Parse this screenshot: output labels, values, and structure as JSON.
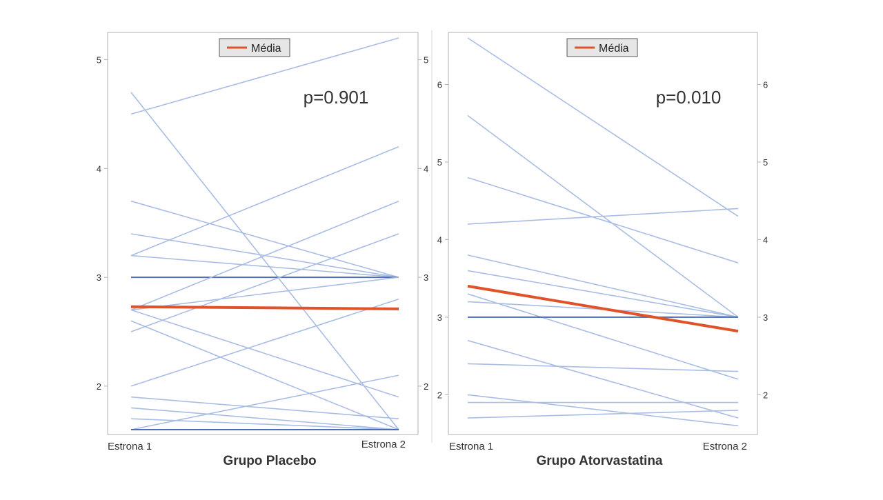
{
  "colors": {
    "individual": "#a9bde4",
    "duplicate": "#4a6db8",
    "mean": "#e0532a",
    "axis": "#b0b0b0",
    "tick_text": "#333333",
    "legend_bg": "#e6e6e6",
    "legend_border": "#555555"
  },
  "chart_data": [
    {
      "type": "line",
      "title": "Grupo Placebo",
      "categories": [
        "Estrona 1",
        "Estrona 2"
      ],
      "ylim": [
        1.6,
        5.2
      ],
      "yticks": [
        "2",
        "3",
        "4",
        "5"
      ],
      "ytick_values": [
        2,
        3,
        4,
        5
      ],
      "annotation": "p=0.901",
      "legend": {
        "label": "Média",
        "placement": "top-center"
      },
      "mean": [
        2.73,
        2.71
      ],
      "subjects": [
        [
          4.5,
          5.2
        ],
        [
          4.7,
          1.6
        ],
        [
          3.7,
          3.0
        ],
        [
          3.4,
          3.0
        ],
        [
          3.2,
          4.2
        ],
        [
          3.2,
          3.0
        ],
        [
          3.0,
          3.0
        ],
        [
          3.0,
          3.0
        ],
        [
          2.7,
          3.7
        ],
        [
          2.5,
          3.4
        ],
        [
          2.7,
          3.0
        ],
        [
          2.7,
          1.9
        ],
        [
          2.6,
          1.6
        ],
        [
          2.0,
          2.8
        ],
        [
          1.9,
          1.7
        ],
        [
          1.8,
          1.6
        ],
        [
          1.7,
          1.6
        ],
        [
          1.6,
          2.1
        ],
        [
          1.6,
          1.6
        ],
        [
          1.6,
          1.6
        ]
      ]
    },
    {
      "type": "line",
      "title": "Grupo Atorvastatina",
      "categories": [
        "Estrona 1",
        "Estrona 2"
      ],
      "ylim": [
        1.55,
        6.6
      ],
      "yticks": [
        "2",
        "3",
        "4",
        "5",
        "6"
      ],
      "ytick_values": [
        2,
        3,
        4,
        5,
        6
      ],
      "annotation": "p=0.010",
      "legend": {
        "label": "Média",
        "placement": "top-center"
      },
      "mean": [
        3.4,
        2.82
      ],
      "subjects": [
        [
          6.6,
          4.3
        ],
        [
          5.6,
          3.0
        ],
        [
          4.8,
          3.7
        ],
        [
          4.2,
          4.4
        ],
        [
          3.8,
          3.0
        ],
        [
          3.6,
          3.0
        ],
        [
          3.3,
          2.2
        ],
        [
          3.2,
          3.0
        ],
        [
          3.0,
          3.0
        ],
        [
          3.0,
          3.0
        ],
        [
          2.7,
          1.7
        ],
        [
          2.4,
          2.3
        ],
        [
          2.0,
          1.6
        ],
        [
          1.9,
          1.9
        ],
        [
          1.7,
          1.8
        ]
      ]
    }
  ]
}
